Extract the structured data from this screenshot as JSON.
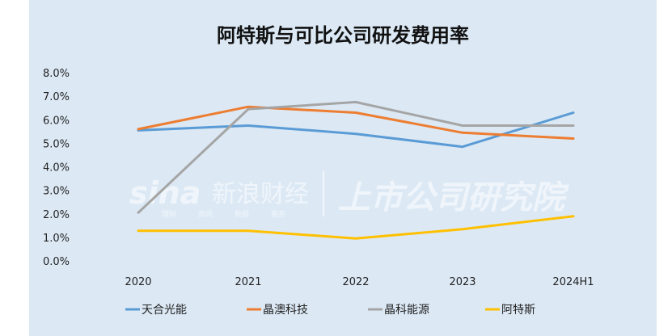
{
  "chart_data": {
    "type": "line",
    "title": "阿特斯与可比公司研发费用率",
    "categories": [
      "2020",
      "2021",
      "2022",
      "2023",
      "2024H1"
    ],
    "y_tick_labels": [
      "8.0%",
      "7.0%",
      "6.0%",
      "5.0%",
      "4.0%",
      "3.0%",
      "2.0%",
      "1.0%",
      "0.0%"
    ],
    "ylim": [
      0,
      8
    ],
    "grid": false,
    "legend_position": "bottom",
    "series": [
      {
        "name": "天合光能",
        "color": "#5b9bd5",
        "values": [
          5.55,
          5.75,
          5.4,
          4.85,
          6.3
        ]
      },
      {
        "name": "晶澳科技",
        "color": "#ed7d31",
        "values": [
          5.6,
          6.55,
          6.3,
          5.45,
          5.2
        ]
      },
      {
        "name": "晶科能源",
        "color": "#a5a5a5",
        "values": [
          2.05,
          6.45,
          6.75,
          5.75,
          5.75
        ]
      },
      {
        "name": "阿特斯",
        "color": "#ffc000",
        "values": [
          1.28,
          1.28,
          0.95,
          1.35,
          1.9
        ]
      }
    ]
  },
  "watermark": {
    "brand": "sina",
    "brand_cn": "新浪财经",
    "research": "上市公司研究院",
    "sub": [
      "理财",
      "资讯",
      "数据",
      "服务"
    ]
  }
}
